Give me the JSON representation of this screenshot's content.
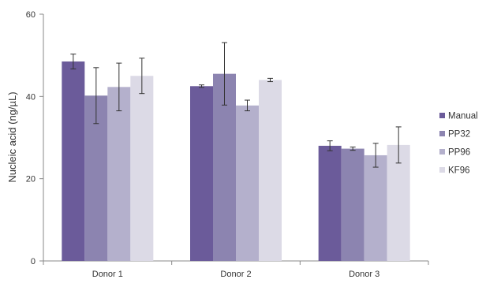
{
  "chart_data": {
    "type": "bar",
    "title": "",
    "xlabel": "",
    "ylabel": "Nucleic acid (ng/µL)",
    "ylim": [
      0,
      60
    ],
    "yticks": [
      0,
      20,
      40,
      60
    ],
    "grid": false,
    "legend_position": "right",
    "categories": [
      "Donor 1",
      "Donor 2",
      "Donor 3"
    ],
    "series": [
      {
        "name": "Manual",
        "color": "#6b5b9a",
        "values": [
          48.5,
          42.5,
          28.0
        ],
        "errors": [
          1.8,
          0.3,
          1.2
        ]
      },
      {
        "name": "PP32",
        "color": "#8c84b0",
        "values": [
          40.2,
          45.5,
          27.3
        ],
        "errors": [
          6.8,
          7.6,
          0.4
        ]
      },
      {
        "name": "PP96",
        "color": "#b4b0cc",
        "values": [
          42.3,
          37.8,
          25.7
        ],
        "errors": [
          5.8,
          1.3,
          2.9
        ]
      },
      {
        "name": "KF96",
        "color": "#dcdae6",
        "values": [
          45.0,
          44.0,
          28.2
        ],
        "errors": [
          4.3,
          0.4,
          4.4
        ]
      }
    ]
  }
}
